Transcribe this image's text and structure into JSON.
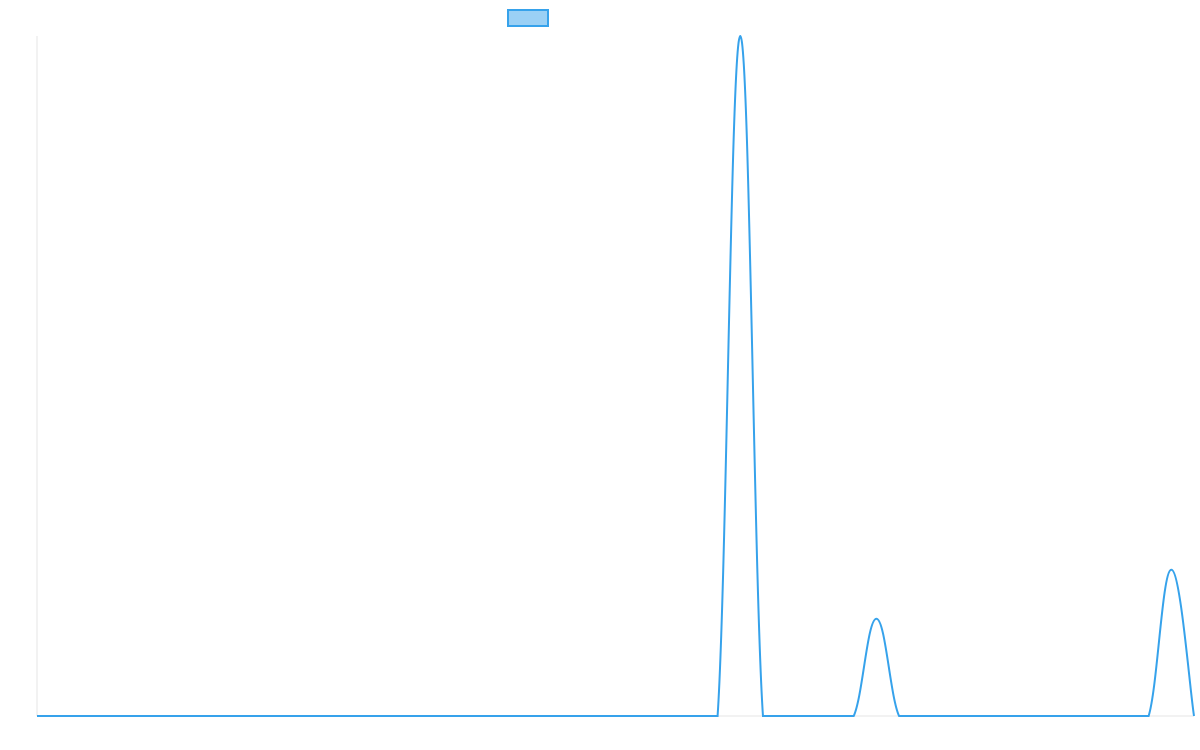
{
  "chart_data": {
    "type": "line",
    "categories": [
      null,
      null,
      null,
      null,
      null,
      null,
      null,
      null,
      null,
      null,
      null,
      null,
      null,
      null,
      null,
      null,
      null,
      null,
      null,
      null,
      null,
      null,
      null,
      null,
      null,
      null,
      null,
      null,
      null,
      null,
      null,
      null,
      null,
      null,
      null,
      null,
      null,
      null,
      null,
      null,
      null,
      null,
      null,
      null,
      null,
      null,
      null,
      null,
      null,
      null,
      null,
      null
    ],
    "series": [
      {
        "color": "#36a2eb",
        "fill": "rgba(54,162,235,0.5)",
        "values": [
          0,
          0,
          0,
          0,
          0,
          0,
          0,
          0,
          0,
          0,
          0,
          0,
          0,
          0,
          0,
          0,
          0,
          0,
          0,
          0,
          0,
          0,
          0,
          0,
          0,
          0,
          0,
          0,
          0,
          0,
          0,
          100,
          0,
          0,
          0,
          0,
          0,
          14.3,
          0,
          0,
          0,
          0,
          0,
          0,
          0,
          0,
          0,
          0,
          0,
          0,
          21.5,
          0
        ]
      }
    ],
    "ylim": [
      0,
      100
    ],
    "legend": "top"
  }
}
